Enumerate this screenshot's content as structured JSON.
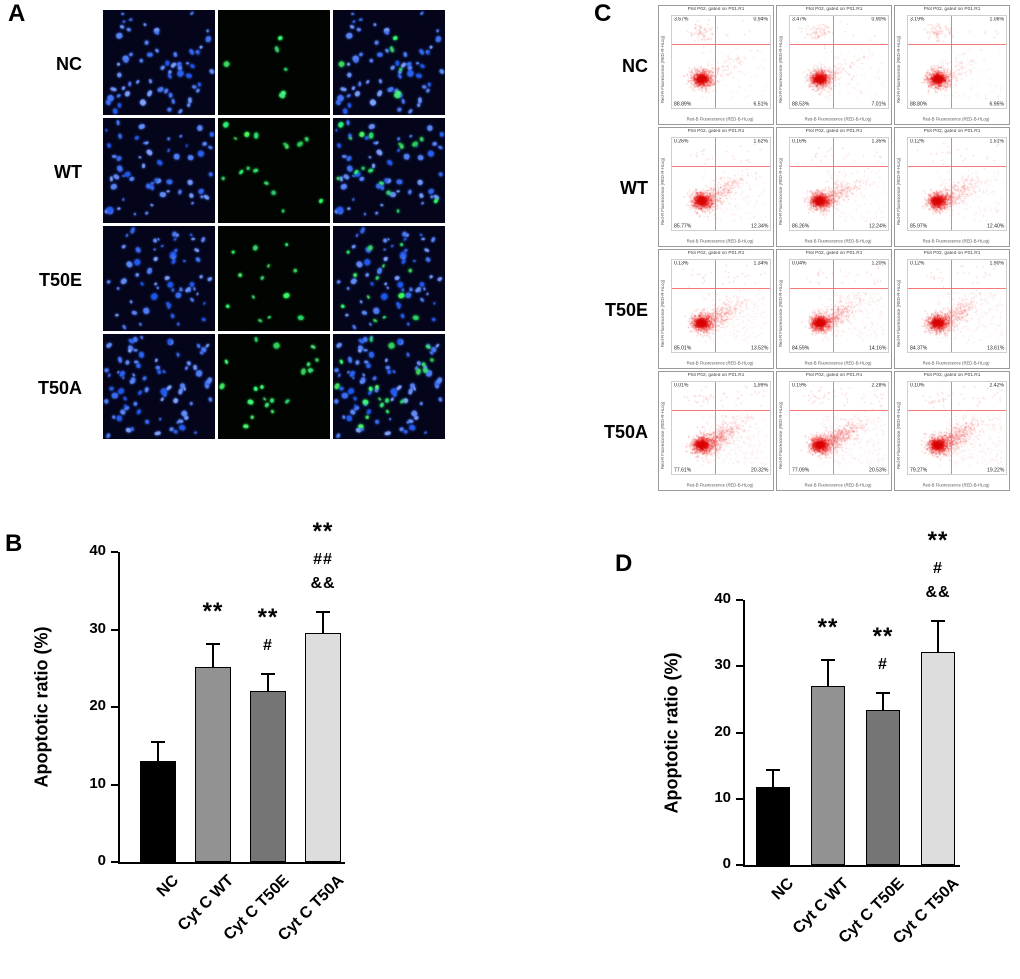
{
  "panels": {
    "A": {
      "label": "A",
      "rows": [
        {
          "label": "NC"
        },
        {
          "label": "WT"
        },
        {
          "label": "T50E"
        },
        {
          "label": "T50A"
        }
      ]
    },
    "B": {
      "label": "B"
    },
    "C": {
      "label": "C",
      "plot_header": "Plot P02, gated on P01.R1",
      "x_axis_label": "Red-B Fluorescence (RED-B-HLog)",
      "y_axis_label": "Red-R Fluorescence (RED-R-HLog)",
      "rows": [
        {
          "label": "NC",
          "plots": [
            {
              "ul": "3.67%",
              "ur": "0.94%",
              "ll": "88.89%",
              "lr": "6.51%"
            },
            {
              "ul": "3.47%",
              "ur": "0.90%",
              "ll": "88.53%",
              "lr": "7.01%"
            },
            {
              "ul": "3.19%",
              "ur": "1.06%",
              "ll": "88.80%",
              "lr": "6.95%"
            }
          ]
        },
        {
          "label": "WT",
          "plots": [
            {
              "ul": "0.26%",
              "ur": "1.62%",
              "ll": "85.77%",
              "lr": "12.34%"
            },
            {
              "ul": "0.16%",
              "ur": "1.35%",
              "ll": "86.26%",
              "lr": "12.24%"
            },
            {
              "ul": "0.12%",
              "ur": "1.51%",
              "ll": "85.97%",
              "lr": "12.40%"
            }
          ]
        },
        {
          "label": "T50E",
          "plots": [
            {
              "ul": "0.13%",
              "ur": "1.34%",
              "ll": "85.01%",
              "lr": "13.52%"
            },
            {
              "ul": "0.04%",
              "ur": "1.20%",
              "ll": "84.59%",
              "lr": "14.16%"
            },
            {
              "ul": "0.12%",
              "ur": "1.90%",
              "ll": "84.37%",
              "lr": "13.61%"
            }
          ]
        },
        {
          "label": "T50A",
          "plots": [
            {
              "ul": "0.01%",
              "ur": "1.99%",
              "ll": "77.61%",
              "lr": "20.32%"
            },
            {
              "ul": "0.19%",
              "ur": "2.28%",
              "ll": "77.09%",
              "lr": "20.53%"
            },
            {
              "ul": "0.10%",
              "ur": "2.42%",
              "ll": "79.27%",
              "lr": "19.22%"
            }
          ]
        }
      ]
    },
    "D": {
      "label": "D"
    }
  },
  "chart_data": [
    {
      "id": "B",
      "type": "bar",
      "title": "",
      "ylabel": "Apoptotic ratio (%)",
      "ylim": [
        0,
        40
      ],
      "yticks": [
        0,
        10,
        20,
        30,
        40
      ],
      "categories": [
        "NC",
        "Cyt C WT",
        "Cyt C T50E",
        "Cyt C T50A"
      ],
      "values": [
        13,
        25.2,
        22.1,
        29.5
      ],
      "errors": [
        2.5,
        2.9,
        2.1,
        2.8
      ],
      "annotations": [
        [],
        [
          "**"
        ],
        [
          "**",
          "#"
        ],
        [
          "**",
          "##",
          "&&"
        ]
      ],
      "bar_colors": [
        "#000000",
        "#929292",
        "#757575",
        "#dddddd"
      ]
    },
    {
      "id": "D",
      "type": "bar",
      "title": "",
      "ylabel": "Apoptotic ratio (%)",
      "ylim": [
        0,
        40
      ],
      "yticks": [
        0,
        10,
        20,
        30,
        40
      ],
      "categories": [
        "NC",
        "Cyt C WT",
        "Cyt C T50E",
        "Cyt C T50A"
      ],
      "values": [
        11.7,
        27,
        23.4,
        32.2
      ],
      "errors": [
        2.7,
        3.9,
        2.5,
        4.7
      ],
      "annotations": [
        [],
        [
          "**"
        ],
        [
          "**",
          "#"
        ],
        [
          "**",
          "#",
          "&&"
        ]
      ],
      "bar_colors": [
        "#000000",
        "#929292",
        "#757575",
        "#dddddd"
      ]
    }
  ]
}
